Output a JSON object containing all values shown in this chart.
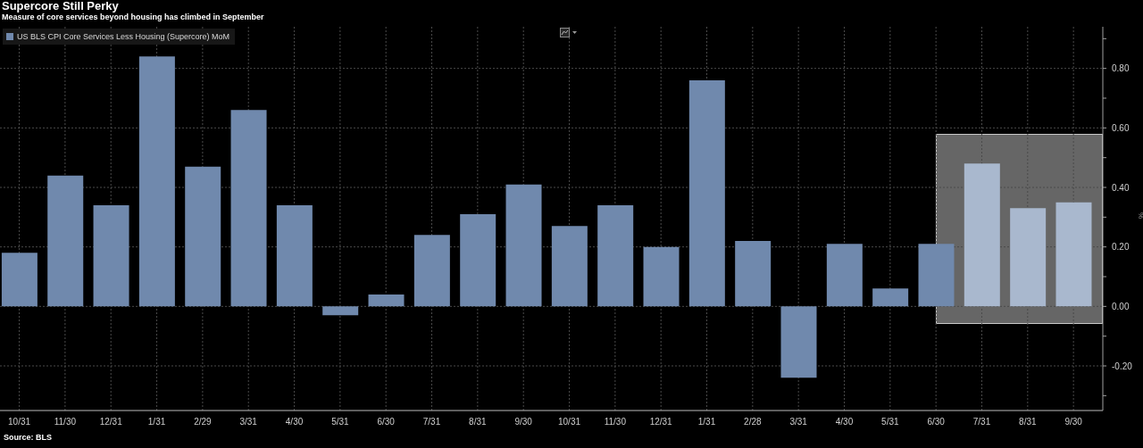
{
  "chart_data": {
    "type": "bar",
    "title": "Supercore Still Perky",
    "subtitle": "Measure of core services beyond housing has climbed in September",
    "ylabel": "%",
    "categories": [
      "10/31",
      "11/30",
      "12/31",
      "1/31",
      "2/29",
      "3/31",
      "4/30",
      "5/31",
      "6/30",
      "7/31",
      "8/31",
      "9/30",
      "10/31",
      "11/30",
      "12/31",
      "1/31",
      "2/28",
      "3/31",
      "4/30",
      "5/31",
      "6/30",
      "7/31",
      "8/31",
      "9/30"
    ],
    "series": [
      {
        "name": "US BLS CPI Core Services Less Housing (Supercore) MoM",
        "color": "#7089ad",
        "colors": [
          "#7089ad",
          "#7089ad",
          "#7089ad",
          "#7089ad",
          "#7089ad",
          "#7089ad",
          "#7089ad",
          "#7089ad",
          "#7089ad",
          "#7089ad",
          "#7089ad",
          "#7089ad",
          "#7089ad",
          "#7089ad",
          "#7089ad",
          "#7089ad",
          "#7089ad",
          "#7089ad",
          "#7089ad",
          "#7089ad",
          "#7089ad",
          "#a9b8ce",
          "#a9b8ce",
          "#a9b8ce"
        ],
        "values": [
          0.18,
          0.44,
          0.34,
          0.84,
          0.47,
          0.66,
          0.34,
          -0.03,
          0.04,
          0.24,
          0.31,
          0.41,
          0.27,
          0.34,
          0.2,
          0.76,
          0.22,
          -0.24,
          0.21,
          0.06,
          0.21,
          0.48,
          0.33,
          0.35
        ]
      }
    ],
    "ylim": [
      -0.35,
      0.94
    ],
    "yticks": [
      {
        "value": -0.3,
        "label": null
      },
      {
        "value": -0.2,
        "label": "-0.20"
      },
      {
        "value": -0.1,
        "label": null
      },
      {
        "value": 0,
        "label": "0.00"
      },
      {
        "value": 0.1,
        "label": null
      },
      {
        "value": 0.2,
        "label": "0.20"
      },
      {
        "value": 0.3,
        "label": null
      },
      {
        "value": 0.4,
        "label": "0.40"
      },
      {
        "value": 0.5,
        "label": null
      },
      {
        "value": 0.6,
        "label": "0.60"
      },
      {
        "value": 0.7,
        "label": null
      },
      {
        "value": 0.8,
        "label": "0.80"
      },
      {
        "value": 0.9,
        "label": null
      }
    ],
    "grid": true,
    "legend": "top left",
    "annotations": [
      "Source: BLS"
    ]
  }
}
